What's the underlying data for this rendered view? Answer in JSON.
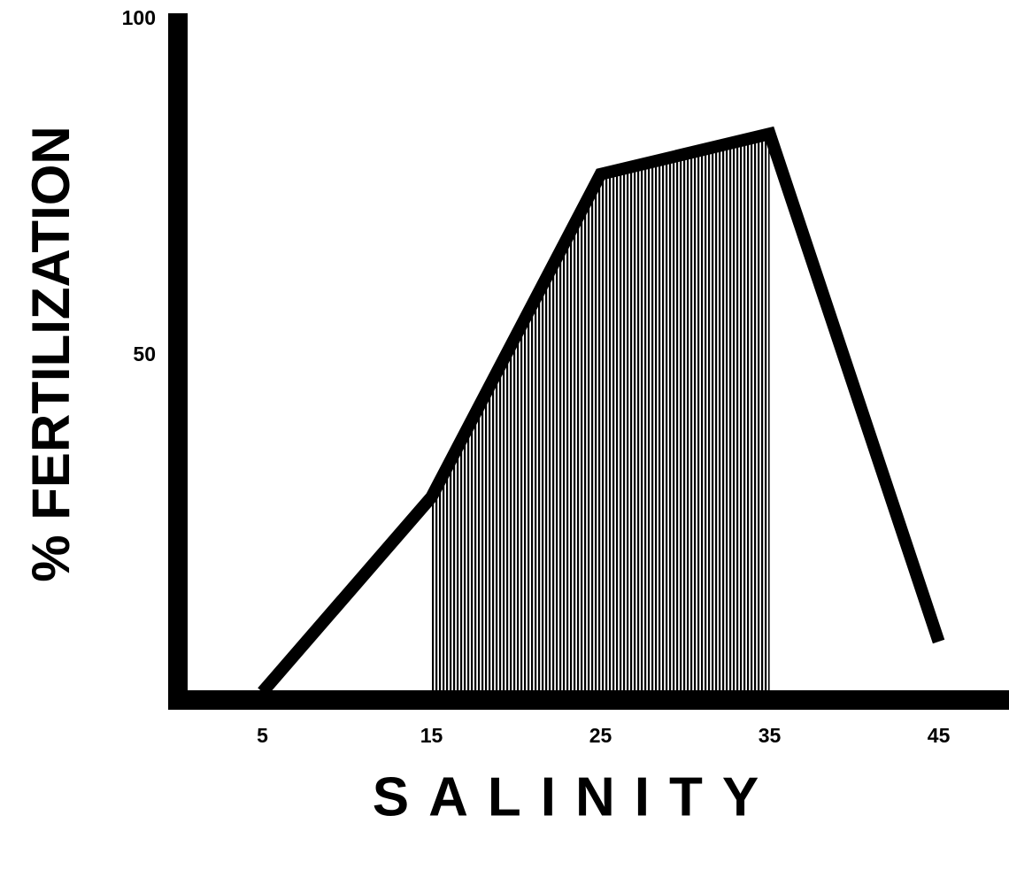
{
  "chart_data": {
    "type": "line",
    "x_label": "SALINITY",
    "y_label": "% FERTILIZATION",
    "x": [
      5,
      15,
      25,
      35,
      45
    ],
    "values": [
      0,
      29,
      77,
      83,
      7.5
    ],
    "color": "#000000",
    "shade_x": [
      15,
      35
    ],
    "xlim": [
      0,
      49
    ],
    "ylim": [
      0,
      100
    ],
    "xticks": [
      5,
      15,
      25,
      35,
      45
    ],
    "yticks": [
      50,
      100
    ],
    "grid": false
  }
}
